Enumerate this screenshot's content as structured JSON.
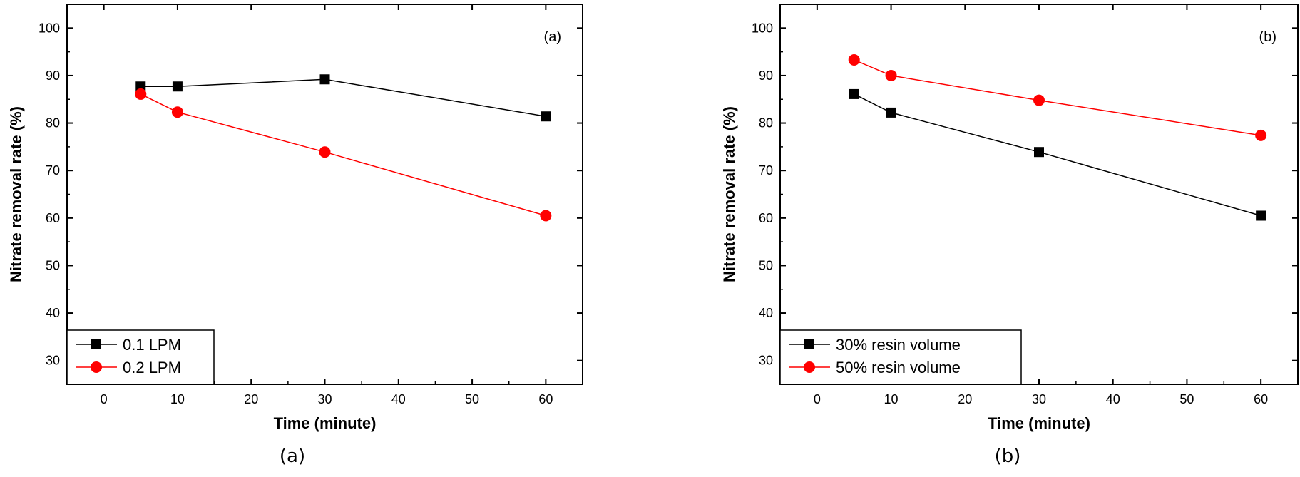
{
  "chart_data": [
    {
      "type": "line",
      "panel_label": "(a)",
      "caption": "(a)",
      "xlabel": "Time (minute)",
      "ylabel": "Nitrate removal rate (%)",
      "xlim": [
        -5,
        65
      ],
      "ylim": [
        25,
        105
      ],
      "xticks": [
        0,
        10,
        20,
        30,
        40,
        50,
        60
      ],
      "yticks": [
        30,
        40,
        50,
        60,
        70,
        80,
        90,
        100
      ],
      "legend_position": "bottom-left",
      "series": [
        {
          "name": "0.1 LPM",
          "color": "#000000",
          "marker": "square",
          "x": [
            5,
            10,
            30,
            60
          ],
          "y": [
            87.7,
            87.7,
            89.2,
            81.4
          ]
        },
        {
          "name": "0.2 LPM",
          "color": "#ff0000",
          "marker": "circle",
          "x": [
            5,
            10,
            30,
            60
          ],
          "y": [
            86.1,
            82.3,
            73.9,
            60.5
          ]
        }
      ]
    },
    {
      "type": "line",
      "panel_label": "(b)",
      "caption": "(b)",
      "xlabel": "Time (minute)",
      "ylabel": "Nitrate removal rate (%)",
      "xlim": [
        -5,
        65
      ],
      "ylim": [
        25,
        105
      ],
      "xticks": [
        0,
        10,
        20,
        30,
        40,
        50,
        60
      ],
      "yticks": [
        30,
        40,
        50,
        60,
        70,
        80,
        90,
        100
      ],
      "legend_position": "bottom-left",
      "series": [
        {
          "name": "30% resin volume",
          "color": "#000000",
          "marker": "square",
          "x": [
            5,
            10,
            30,
            60
          ],
          "y": [
            86.1,
            82.2,
            73.9,
            60.5
          ]
        },
        {
          "name": "50% resin volume",
          "color": "#ff0000",
          "marker": "circle",
          "x": [
            5,
            10,
            30,
            60
          ],
          "y": [
            93.3,
            90.0,
            84.8,
            77.4
          ]
        }
      ]
    }
  ]
}
